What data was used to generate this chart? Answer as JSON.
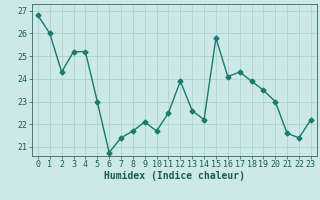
{
  "x": [
    0,
    1,
    2,
    3,
    4,
    5,
    6,
    7,
    8,
    9,
    10,
    11,
    12,
    13,
    14,
    15,
    16,
    17,
    18,
    19,
    20,
    21,
    22,
    23
  ],
  "y": [
    26.8,
    26.0,
    24.3,
    25.2,
    25.2,
    23.0,
    20.75,
    21.4,
    21.7,
    22.1,
    21.7,
    22.5,
    23.9,
    22.6,
    22.2,
    25.8,
    24.1,
    24.3,
    23.9,
    23.5,
    23.0,
    21.6,
    21.4,
    22.2
  ],
  "xlim": [
    -0.5,
    23.5
  ],
  "ylim": [
    20.6,
    27.3
  ],
  "yticks": [
    21,
    22,
    23,
    24,
    25,
    26,
    27
  ],
  "xticks": [
    0,
    1,
    2,
    3,
    4,
    5,
    6,
    7,
    8,
    9,
    10,
    11,
    12,
    13,
    14,
    15,
    16,
    17,
    18,
    19,
    20,
    21,
    22,
    23
  ],
  "xlabel": "Humidex (Indice chaleur)",
  "line_color": "#1a7a6e",
  "marker": "D",
  "marker_size": 2.5,
  "bg_color": "#cce9e7",
  "grid_color": "#aad4d1",
  "axis_color": "#336666",
  "tick_color": "#1a5c55",
  "label_color": "#1a5c55",
  "font_size_label": 7,
  "font_size_tick": 6,
  "line_width": 1.0
}
